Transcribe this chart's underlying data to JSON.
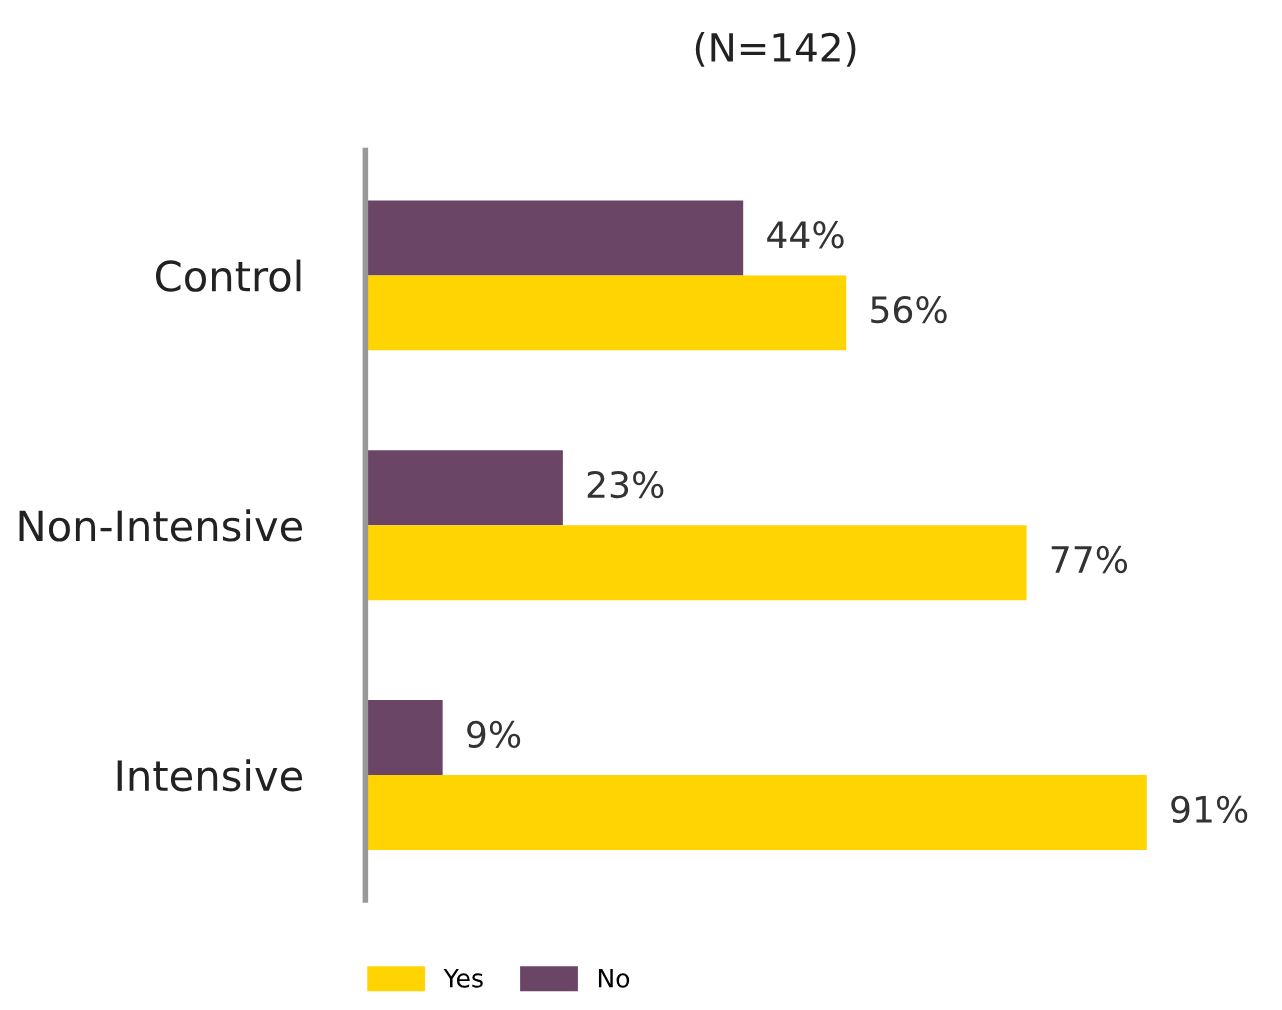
{
  "chart_data": {
    "type": "bar",
    "orientation": "horizontal",
    "title": "(N=142)",
    "categories": [
      "Control",
      "Non-Intensive",
      "Intensive"
    ],
    "series": [
      {
        "name": "No",
        "color": "#6b4566",
        "values": [
          44,
          23,
          9
        ],
        "value_labels": [
          "44%",
          "23%",
          "9%"
        ]
      },
      {
        "name": "Yes",
        "color": "#ffd400",
        "values": [
          56,
          77,
          91
        ],
        "value_labels": [
          "56%",
          "77%",
          "91%"
        ]
      }
    ],
    "tick_labels": "y",
    "grid": false,
    "legend": "bottom"
  }
}
